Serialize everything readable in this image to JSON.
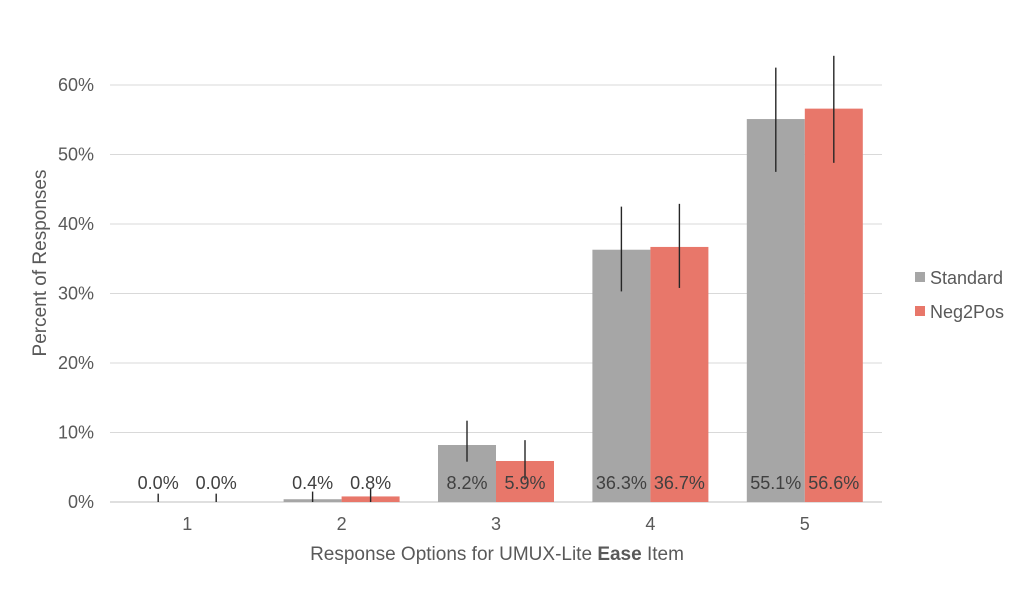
{
  "chart_data": {
    "type": "bar",
    "categories": [
      "1",
      "2",
      "3",
      "4",
      "5"
    ],
    "series": [
      {
        "name": "Standard",
        "color": "#a6a6a6",
        "values": [
          0.0,
          0.4,
          8.2,
          36.3,
          55.1
        ],
        "labels": [
          "0.0%",
          "0.4%",
          "8.2%",
          "36.3%",
          "55.1%"
        ],
        "error_low": [
          0.0,
          0.0,
          5.8,
          30.3,
          47.5
        ],
        "error_high": [
          1.2,
          1.5,
          11.7,
          42.5,
          62.5
        ]
      },
      {
        "name": "Neg2Pos",
        "color": "#e8776a",
        "values": [
          0.0,
          0.8,
          5.9,
          36.7,
          56.6
        ],
        "labels": [
          "0.0%",
          "0.8%",
          "5.9%",
          "36.7%",
          "56.6%"
        ],
        "error_low": [
          0.0,
          0.0,
          3.2,
          30.8,
          48.8
        ],
        "error_high": [
          1.2,
          2.0,
          8.9,
          42.9,
          64.2
        ]
      }
    ],
    "ylim": [
      0,
      60
    ],
    "yticks": [
      "0%",
      "10%",
      "20%",
      "30%",
      "40%",
      "50%",
      "60%"
    ],
    "ylabel": "Percent of Responses",
    "xlabel_parts": [
      "Response Options for UMUX-Lite ",
      "Ease",
      " Item"
    ],
    "legend_position": "right",
    "grid": true
  }
}
